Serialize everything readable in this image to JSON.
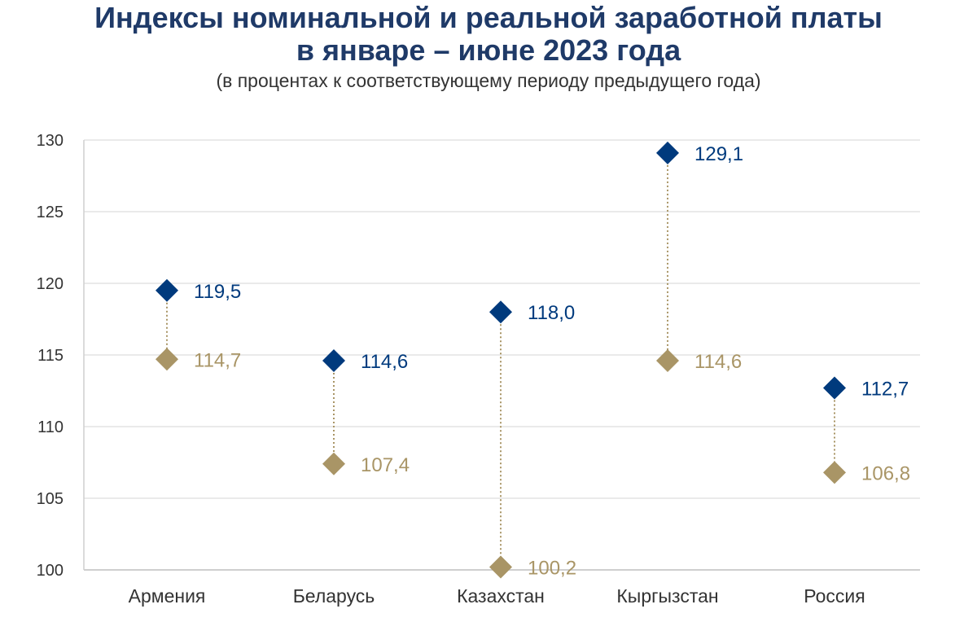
{
  "chart_data": {
    "type": "scatter",
    "title_line1": "Индексы номинальной и реальной заработной платы",
    "title_line2": "в январе – июне 2023 года",
    "subtitle": "(в процентах к соответствующему периоду предыдущего года)",
    "categories": [
      "Армения",
      "Беларусь",
      "Казахстан",
      "Кыргызстан",
      "Россия"
    ],
    "series": [
      {
        "color": "#003a7d",
        "marker": "diamond",
        "values": [
          119.5,
          114.6,
          118.0,
          129.1,
          112.7
        ],
        "labels": [
          "119,5",
          "114,6",
          "118,0",
          "129,1",
          "112,7"
        ]
      },
      {
        "color": "#a99566",
        "marker": "diamond",
        "values": [
          114.7,
          107.4,
          100.2,
          114.6,
          106.8
        ],
        "labels": [
          "114,7",
          "107,4",
          "100,2",
          "114,6",
          "106,8"
        ]
      }
    ],
    "y_ticks": [
      100,
      105,
      110,
      115,
      120,
      125,
      130
    ],
    "ylim": [
      100,
      130
    ],
    "grid": true,
    "connector": "dotted"
  }
}
